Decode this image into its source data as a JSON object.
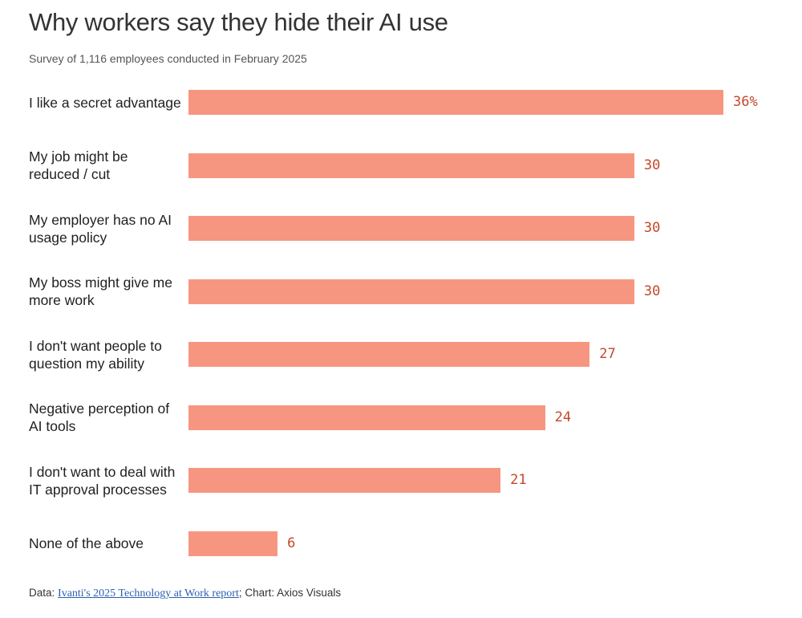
{
  "title": "Why workers say they hide their AI use",
  "subtitle": "Survey of 1,116 employees conducted in February 2025",
  "footer": {
    "prefix": "Data: ",
    "source_link": "Ivanti's 2025 Technology at Work report",
    "suffix": "; Chart: Axios Visuals"
  },
  "colors": {
    "bar": "#f79680",
    "value_text": "#c4462a",
    "link": "#2c5fb0"
  },
  "chart_data": {
    "type": "bar",
    "orientation": "horizontal",
    "title": "Why workers say they hide their AI use",
    "subtitle": "Survey of 1,116 employees conducted in February 2025",
    "categories": [
      "I like a secret advantage",
      "My job might be reduced / cut",
      "My employer has no AI usage policy",
      "My boss might give me more work",
      "I don't want people to question my ability",
      "Negative perception of AI tools",
      "I don't want to deal with IT approval processes",
      "None of the above"
    ],
    "values": [
      36,
      30,
      30,
      30,
      27,
      24,
      21,
      6
    ],
    "value_labels": [
      "36%",
      "30",
      "30",
      "30",
      "27",
      "24",
      "21",
      "6"
    ],
    "unit": "%",
    "xlim": [
      0,
      36
    ],
    "grid": false,
    "legend": "none"
  }
}
